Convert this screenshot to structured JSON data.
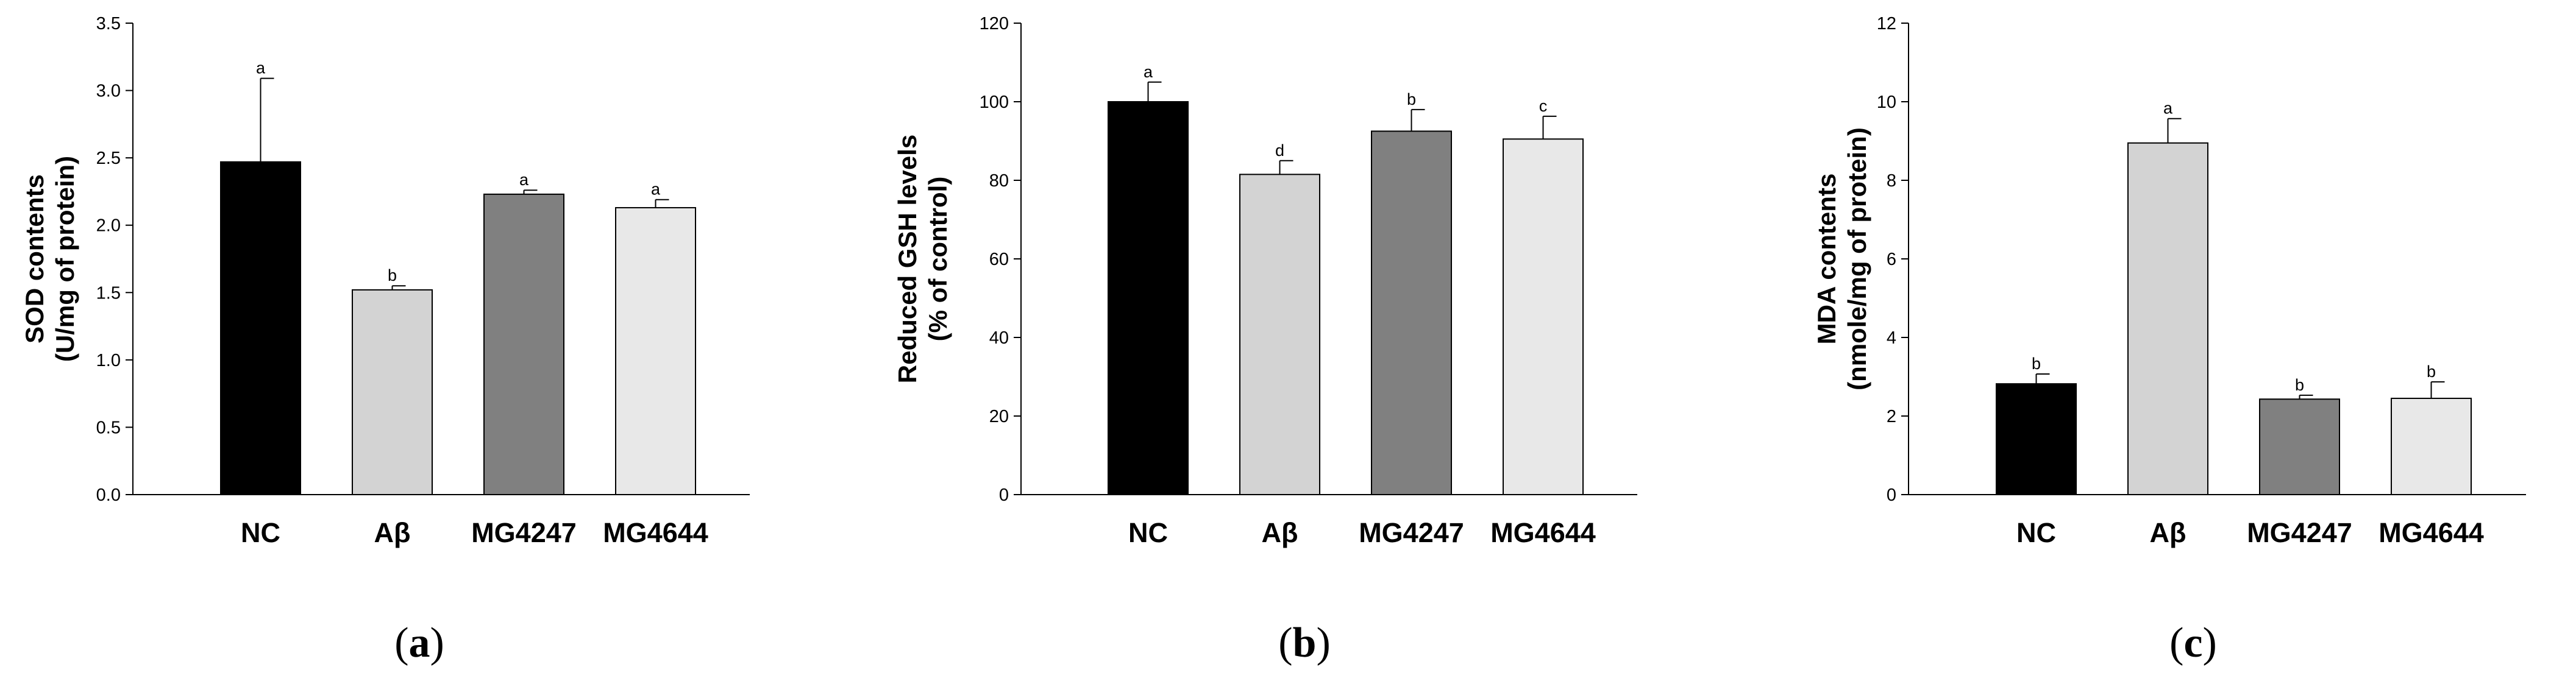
{
  "chart_data": [
    {
      "type": "bar",
      "panel": "a",
      "categories": [
        "NC",
        "Aβ",
        "MG4247",
        "MG4644"
      ],
      "values": [
        2.47,
        1.52,
        2.23,
        2.13
      ],
      "errors": [
        0.62,
        0.03,
        0.03,
        0.06
      ],
      "significance": [
        "a",
        "b",
        "a",
        "a"
      ],
      "ylabel_lines": [
        "SOD contents",
        "(U/mg of protein)"
      ],
      "ylim": [
        0,
        3.5
      ],
      "yticks": [
        "0.0",
        "0.5",
        "1.0",
        "1.5",
        "2.0",
        "2.5",
        "3.0",
        "3.5"
      ],
      "colors": [
        "#000000",
        "#d3d3d3",
        "#808080",
        "#e8e8e8"
      ]
    },
    {
      "type": "bar",
      "panel": "b",
      "categories": [
        "NC",
        "Aβ",
        "MG4247",
        "MG4644"
      ],
      "values": [
        100,
        81.5,
        92.5,
        90.5
      ],
      "errors": [
        5,
        3.5,
        5.5,
        5.8
      ],
      "significance": [
        "a",
        "d",
        "b",
        "c"
      ],
      "ylabel_lines": [
        "Reduced GSH levels",
        "(% of control)"
      ],
      "ylim": [
        0,
        120
      ],
      "yticks": [
        "0",
        "20",
        "40",
        "60",
        "80",
        "100",
        "120"
      ],
      "colors": [
        "#000000",
        "#d3d3d3",
        "#808080",
        "#e8e8e8"
      ]
    },
    {
      "type": "bar",
      "panel": "c",
      "categories": [
        "NC",
        "Aβ",
        "MG4247",
        "MG4644"
      ],
      "values": [
        2.82,
        8.95,
        2.43,
        2.45
      ],
      "errors": [
        0.25,
        0.62,
        0.1,
        0.42
      ],
      "significance": [
        "b",
        "a",
        "b",
        "b"
      ],
      "ylabel_lines": [
        "MDA contents",
        "(nmole/mg of protein)"
      ],
      "ylim": [
        0,
        12
      ],
      "yticks": [
        "0",
        "2",
        "4",
        "6",
        "8",
        "10",
        "12"
      ],
      "colors": [
        "#000000",
        "#d3d3d3",
        "#808080",
        "#e8e8e8"
      ]
    }
  ]
}
